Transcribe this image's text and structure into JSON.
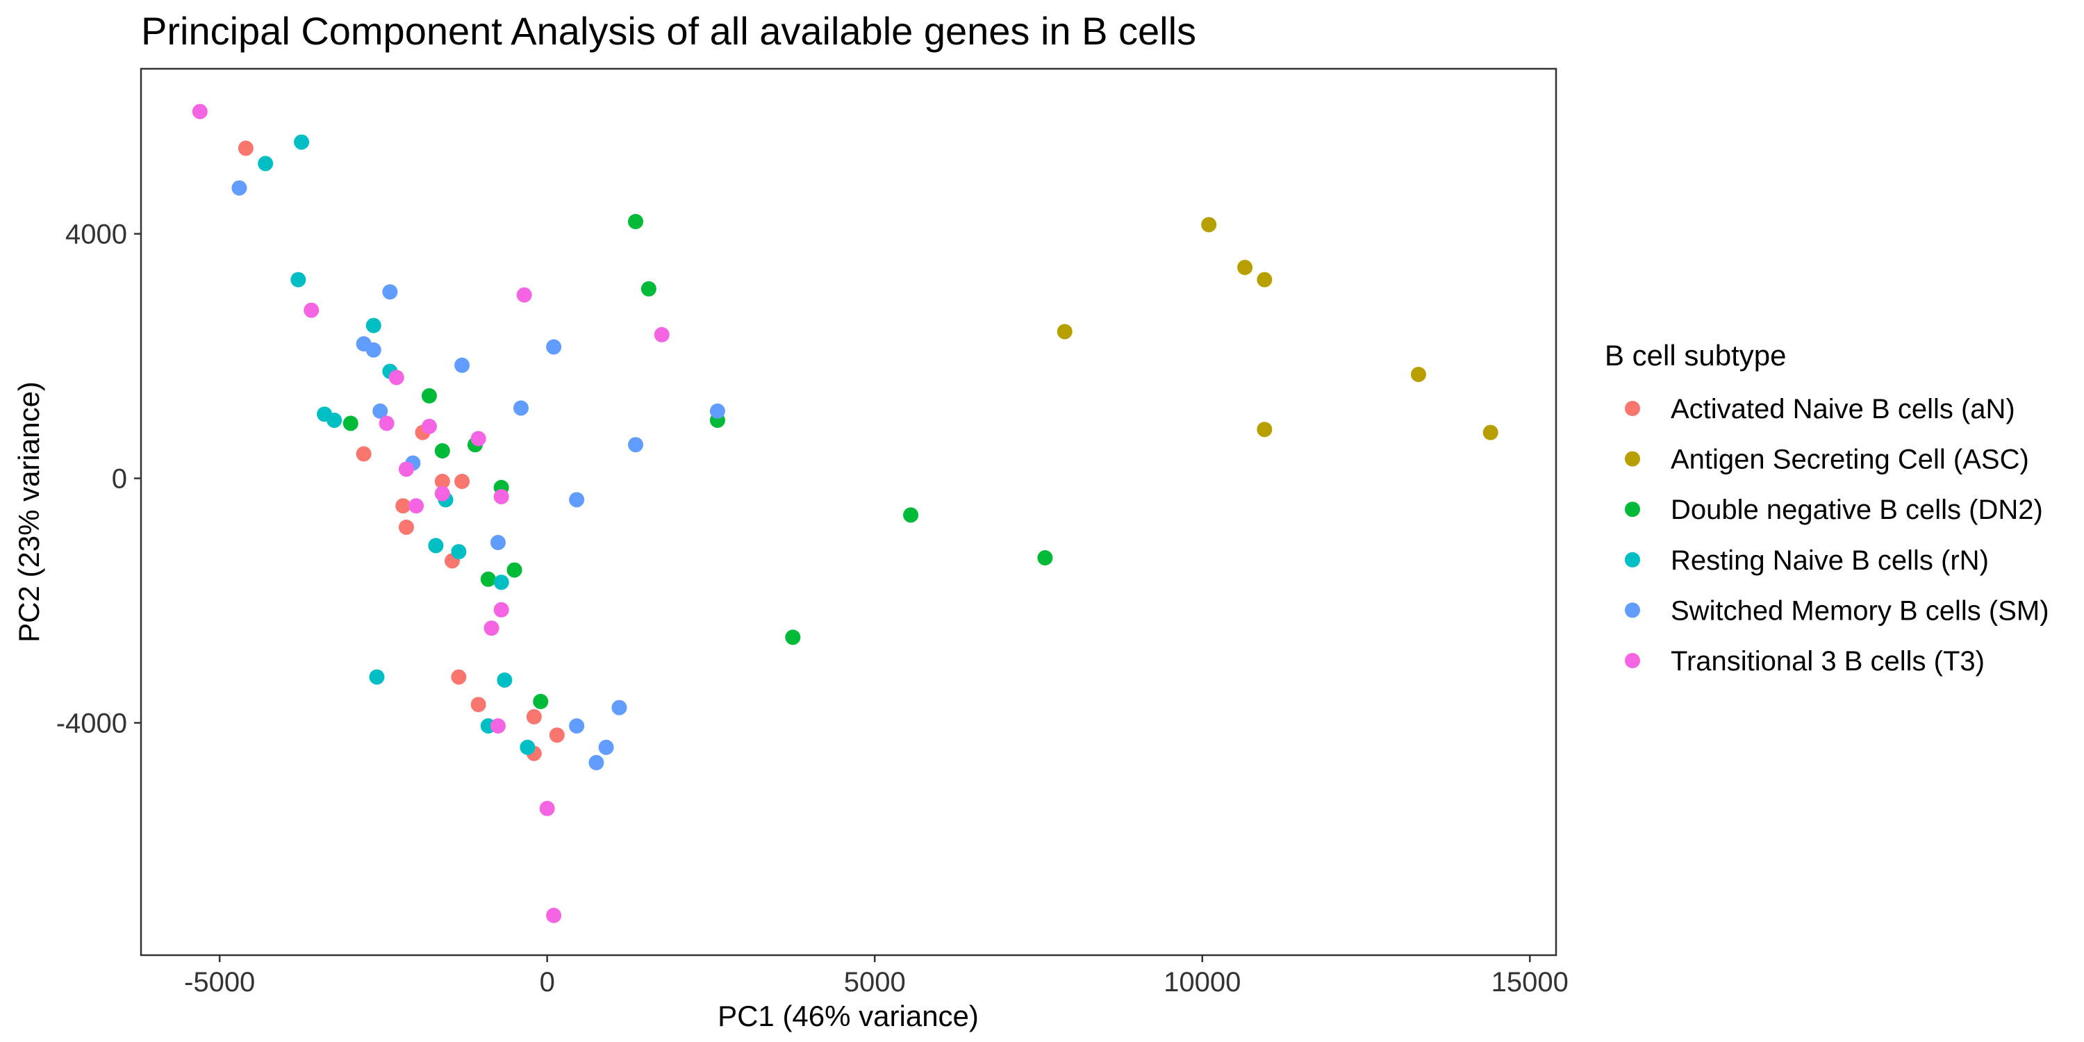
{
  "chart_data": {
    "type": "scatter",
    "title": "Principal Component Analysis of all available genes in B cells",
    "xlabel": "PC1 (46% variance)",
    "ylabel": "PC2 (23% variance)",
    "xlim": [
      -6200,
      15400
    ],
    "ylim": [
      -7800,
      6700
    ],
    "xticks": [
      -5000,
      0,
      5000,
      10000,
      15000
    ],
    "yticks": [
      -4000,
      0,
      4000
    ],
    "grid": false,
    "legend": {
      "title": "B cell subtype",
      "position": "right"
    },
    "series": [
      {
        "name": "Activated Naive B cells (aN)",
        "color": "#F8766D",
        "points": [
          [
            -4600,
            5400
          ],
          [
            -2800,
            400
          ],
          [
            -1900,
            750
          ],
          [
            -1600,
            -50
          ],
          [
            -1300,
            -50
          ],
          [
            -2200,
            -450
          ],
          [
            -2150,
            -800
          ],
          [
            -1450,
            -1350
          ],
          [
            -1350,
            -3250
          ],
          [
            -1050,
            -3700
          ],
          [
            -200,
            -3900
          ],
          [
            -200,
            -4500
          ],
          [
            150,
            -4200
          ]
        ]
      },
      {
        "name": "Antigen Secreting Cell (ASC)",
        "color": "#B79F00",
        "points": [
          [
            10100,
            4150
          ],
          [
            10650,
            3450
          ],
          [
            10950,
            3250
          ],
          [
            7900,
            2400
          ],
          [
            13300,
            1700
          ],
          [
            10950,
            800
          ],
          [
            14400,
            750
          ]
        ]
      },
      {
        "name": "Double negative B cells (DN2)",
        "color": "#00BA38",
        "points": [
          [
            1350,
            4200
          ],
          [
            1550,
            3100
          ],
          [
            -3000,
            900
          ],
          [
            -1800,
            1350
          ],
          [
            -1600,
            450
          ],
          [
            -1100,
            550
          ],
          [
            -700,
            -150
          ],
          [
            2600,
            950
          ],
          [
            5550,
            -600
          ],
          [
            7600,
            -1300
          ],
          [
            3750,
            -2600
          ],
          [
            -900,
            -1650
          ],
          [
            -500,
            -1500
          ],
          [
            -100,
            -3650
          ]
        ]
      },
      {
        "name": "Resting Naive B cells (rN)",
        "color": "#00BFC4",
        "points": [
          [
            -3750,
            5500
          ],
          [
            -4300,
            5150
          ],
          [
            -3800,
            3250
          ],
          [
            -2650,
            2500
          ],
          [
            -2400,
            1750
          ],
          [
            -3400,
            1050
          ],
          [
            -3250,
            950
          ],
          [
            -1550,
            -350
          ],
          [
            -1700,
            -1100
          ],
          [
            -1350,
            -1200
          ],
          [
            -700,
            -1700
          ],
          [
            -2600,
            -3250
          ],
          [
            -650,
            -3300
          ],
          [
            -900,
            -4050
          ],
          [
            -300,
            -4400
          ]
        ]
      },
      {
        "name": "Switched Memory B cells (SM)",
        "color": "#619CFF",
        "points": [
          [
            -4700,
            4750
          ],
          [
            -2400,
            3050
          ],
          [
            -2800,
            2200
          ],
          [
            -2650,
            2100
          ],
          [
            -1300,
            1850
          ],
          [
            100,
            2150
          ],
          [
            -2550,
            1100
          ],
          [
            -400,
            1150
          ],
          [
            1350,
            550
          ],
          [
            2600,
            1100
          ],
          [
            -2050,
            250
          ],
          [
            450,
            -350
          ],
          [
            -750,
            -1050
          ],
          [
            1100,
            -3750
          ],
          [
            450,
            -4050
          ],
          [
            900,
            -4400
          ],
          [
            750,
            -4650
          ]
        ]
      },
      {
        "name": "Transitional 3 B cells (T3)",
        "color": "#F564E3",
        "points": [
          [
            -5300,
            6000
          ],
          [
            -3600,
            2750
          ],
          [
            -350,
            3000
          ],
          [
            1750,
            2350
          ],
          [
            -2300,
            1650
          ],
          [
            -2450,
            900
          ],
          [
            -1800,
            850
          ],
          [
            -1050,
            650
          ],
          [
            -2150,
            150
          ],
          [
            -2000,
            -450
          ],
          [
            -1600,
            -250
          ],
          [
            -700,
            -300
          ],
          [
            -700,
            -2150
          ],
          [
            -850,
            -2450
          ],
          [
            -750,
            -4050
          ],
          [
            0,
            -5400
          ],
          [
            100,
            -7150
          ]
        ]
      }
    ]
  }
}
